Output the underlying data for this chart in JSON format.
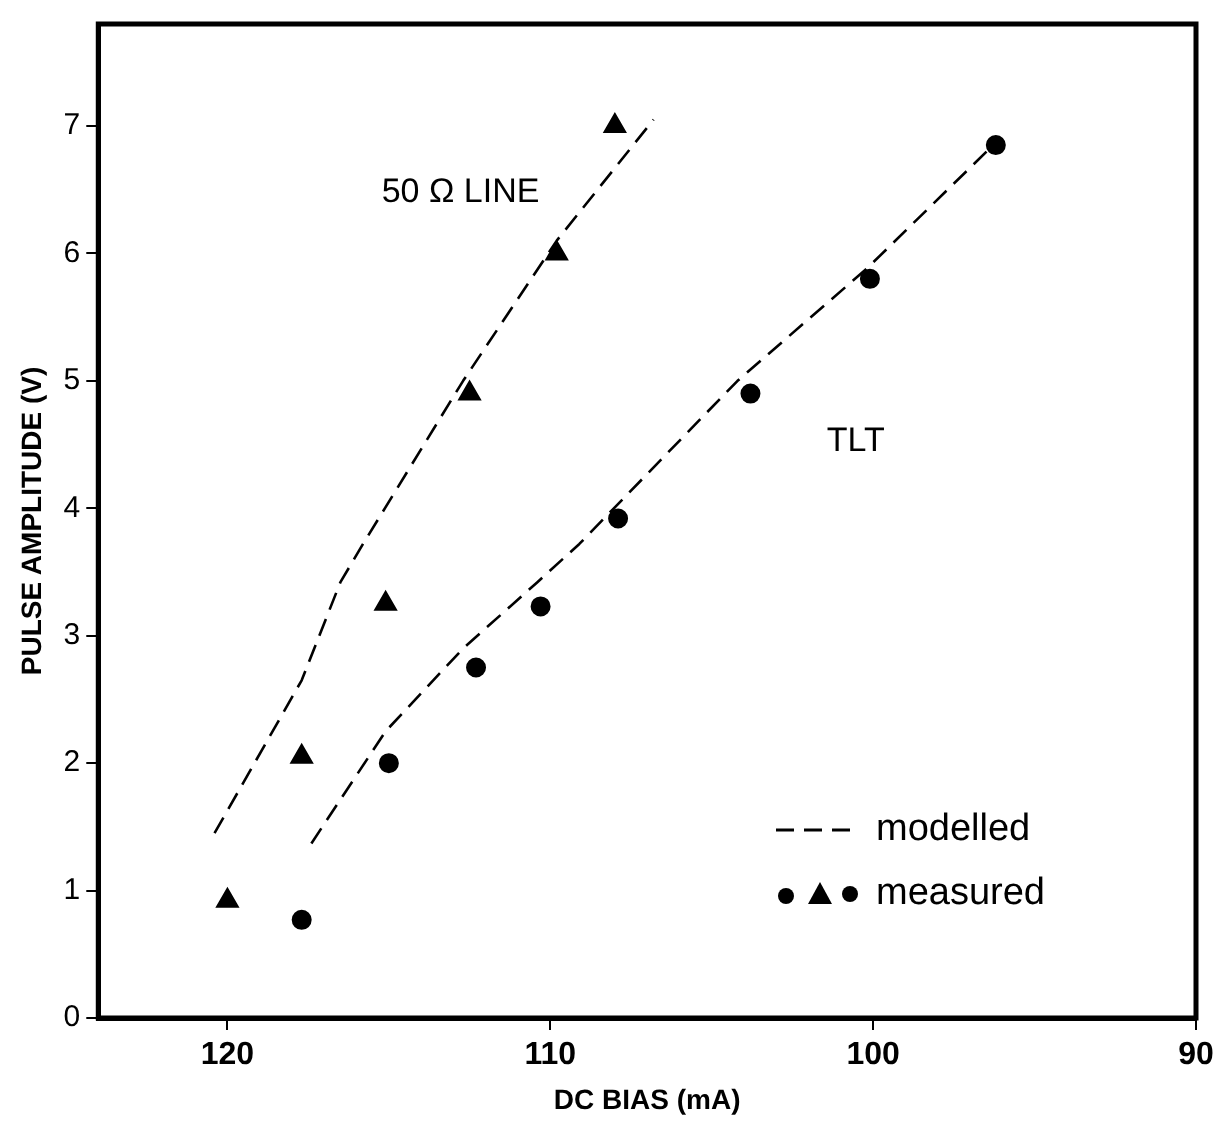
{
  "chart_data": {
    "type": "scatter",
    "xlabel": "DC BIAS (mA)",
    "ylabel": "PULSE AMPLITUDE (V)",
    "xlim": [
      124,
      90
    ],
    "xticks": [
      120,
      110,
      100,
      90
    ],
    "ylim": [
      0,
      7.8
    ],
    "yticks": [
      0,
      1,
      2,
      3,
      4,
      5,
      6,
      7
    ],
    "grid": false,
    "legend": "bottom right",
    "series": [
      {
        "name": "modelled",
        "type": "line",
        "color": "#000000",
        "marker": "none",
        "line_style": "dashed",
        "x": [
          120.4,
          117.7,
          116.5,
          115.8,
          112.7,
          109.8,
          106.8
        ],
        "values": [
          1.45,
          2.65,
          3.42,
          3.72,
          5.0,
          6.1,
          7.05
        ]
      },
      {
        "type": "line",
        "color": "#000000",
        "marker": "none",
        "line_style": "dashed",
        "x": [
          117.4,
          115.1,
          112.7,
          110.4,
          109.1,
          104.2,
          100.2,
          96.4
        ],
        "values": [
          1.37,
          2.25,
          2.9,
          3.42,
          3.72,
          5.0,
          5.88,
          6.82
        ]
      },
      {
        "name": "measured",
        "color": "#000000",
        "marker": "circle",
        "x": [
          117.7,
          115.0,
          112.3,
          110.3,
          107.9,
          103.8,
          100.1,
          96.2
        ],
        "values": [
          0.77,
          2.0,
          2.75,
          3.23,
          3.92,
          4.9,
          5.8,
          6.85
        ]
      },
      {
        "color": "#000000",
        "marker": "triangle",
        "x": [
          120.0,
          117.7,
          115.1,
          112.5,
          109.8,
          108.0
        ],
        "values": [
          0.92,
          2.05,
          3.25,
          4.9,
          6.0,
          7.0
        ]
      }
    ],
    "annotations": [
      "50 Ω LINE",
      "TLT"
    ]
  }
}
